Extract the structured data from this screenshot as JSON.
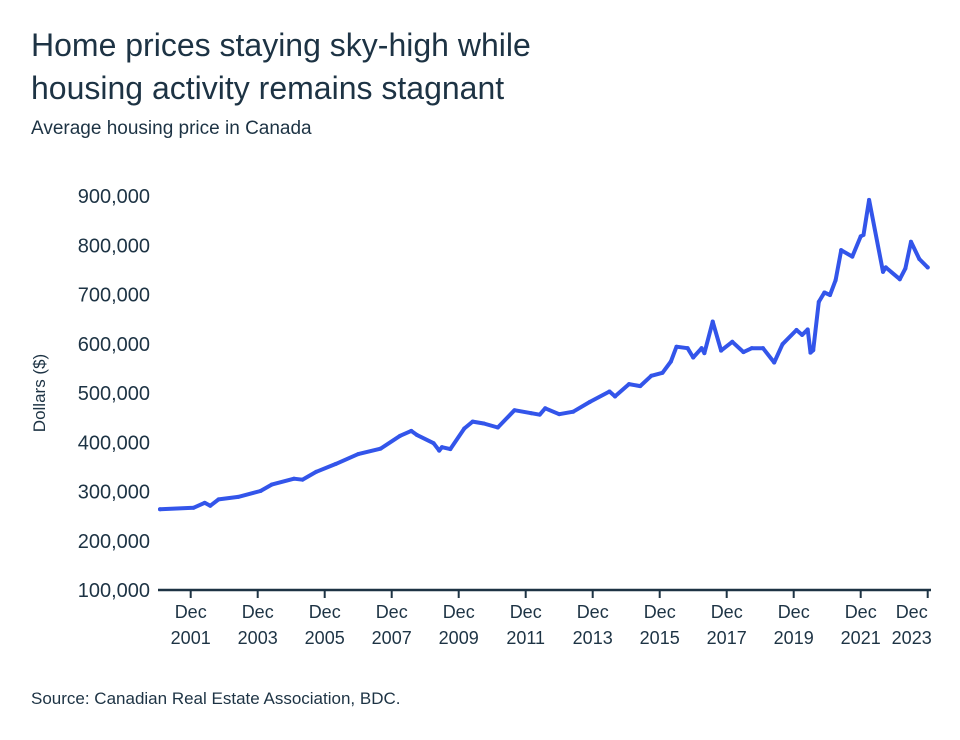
{
  "header": {
    "title_line1": "Home prices staying sky-high while",
    "title_line2": "housing activity remains stagnant",
    "subtitle": "Average housing price in Canada"
  },
  "footer": {
    "source": "Source: Canadian Real Estate Association, BDC."
  },
  "colors": {
    "line": "#3355ea",
    "text": "#1d3344",
    "axis": "#1d3344"
  },
  "chart_data": {
    "type": "line",
    "title": "Average housing price in Canada",
    "xlabel": "",
    "ylabel": "Dollars ($)",
    "ylim": [
      100000,
      900000
    ],
    "xlim": [
      "2001-01",
      "2024-01"
    ],
    "grid": false,
    "y_ticks": [
      "100,000",
      "200,000",
      "300,000",
      "400,000",
      "500,000",
      "600,000",
      "700,000",
      "800,000",
      "900,000"
    ],
    "y_tick_values": [
      100000,
      200000,
      300000,
      400000,
      500000,
      600000,
      700000,
      800000,
      900000
    ],
    "x_ticks": [
      {
        "month": "Dec",
        "year": "2001",
        "date": "2001-12"
      },
      {
        "month": "Dec",
        "year": "2003",
        "date": "2003-12"
      },
      {
        "month": "Dec",
        "year": "2005",
        "date": "2005-12"
      },
      {
        "month": "Dec",
        "year": "2007",
        "date": "2007-12"
      },
      {
        "month": "Dec",
        "year": "2009",
        "date": "2009-12"
      },
      {
        "month": "Dec",
        "year": "2011",
        "date": "2011-12"
      },
      {
        "month": "Dec",
        "year": "2013",
        "date": "2013-12"
      },
      {
        "month": "Dec",
        "year": "2015",
        "date": "2015-12"
      },
      {
        "month": "Dec",
        "year": "2017",
        "date": "2017-12"
      },
      {
        "month": "Dec",
        "year": "2019",
        "date": "2019-12"
      },
      {
        "month": "Dec",
        "year": "2021",
        "date": "2021-12"
      },
      {
        "month": "Dec",
        "year": "2023",
        "date": "2023-12"
      }
    ],
    "series": [
      {
        "x": [
          "2001-01",
          "2002-01",
          "2002-05",
          "2002-07",
          "2002-10",
          "2003-05",
          "2004-01",
          "2004-05",
          "2005-01",
          "2005-04",
          "2005-09",
          "2006-04",
          "2006-12",
          "2007-08",
          "2008-03",
          "2008-07",
          "2008-09",
          "2009-03",
          "2009-05",
          "2009-06",
          "2009-09",
          "2010-02",
          "2010-05",
          "2010-09",
          "2011-02",
          "2011-08",
          "2012-02",
          "2012-05",
          "2012-07",
          "2012-12",
          "2013-05",
          "2013-11",
          "2014-06",
          "2014-08",
          "2015-01",
          "2015-05",
          "2015-09",
          "2016-01",
          "2016-04",
          "2016-06",
          "2016-10",
          "2016-12",
          "2017-03",
          "2017-04",
          "2017-07",
          "2017-10",
          "2018-02",
          "2018-06",
          "2018-09",
          "2019-01",
          "2019-05",
          "2019-08",
          "2020-01",
          "2020-03",
          "2020-05",
          "2020-06",
          "2020-07",
          "2020-09",
          "2020-11",
          "2021-01",
          "2021-03",
          "2021-05",
          "2021-09",
          "2021-12",
          "2022-01",
          "2022-03",
          "2022-08",
          "2022-09",
          "2023-02",
          "2023-04",
          "2023-06",
          "2023-09",
          "2023-12"
        ],
        "y": [
          264000,
          267000,
          277000,
          271000,
          284000,
          289000,
          301000,
          314000,
          326000,
          324000,
          340000,
          356000,
          376000,
          387000,
          413000,
          423000,
          415000,
          398000,
          383000,
          390000,
          386000,
          428000,
          442000,
          438000,
          430000,
          465000,
          459000,
          456000,
          469000,
          457000,
          462000,
          482000,
          503000,
          493000,
          518000,
          514000,
          535000,
          541000,
          564000,
          594000,
          591000,
          572000,
          591000,
          581000,
          645000,
          586000,
          604000,
          583000,
          591000,
          591000,
          562000,
          599000,
          628000,
          618000,
          629000,
          582000,
          587000,
          685000,
          704000,
          699000,
          729000,
          790000,
          777000,
          818000,
          821000,
          892000,
          746000,
          755000,
          731000,
          753000,
          807000,
          772000,
          755000
        ]
      }
    ]
  }
}
